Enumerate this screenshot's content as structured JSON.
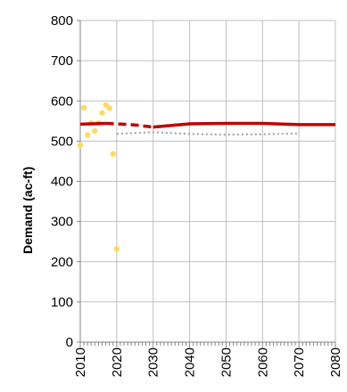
{
  "chart_data": {
    "type": "line",
    "ylabel": "Demand (ac-ft)",
    "xlabel": "",
    "title": "",
    "xlim": [
      2010,
      2080
    ],
    "ylim": [
      0,
      800
    ],
    "x_ticks": [
      2010,
      2020,
      2030,
      2040,
      2050,
      2060,
      2070,
      2080
    ],
    "y_ticks": [
      0,
      100,
      200,
      300,
      400,
      500,
      600,
      700,
      800
    ],
    "grid": true,
    "legend": "none",
    "series": [
      {
        "style": "scatter",
        "color": "#FFD966",
        "points": [
          [
            2010,
            490
          ],
          [
            2011,
            583
          ],
          [
            2012,
            515
          ],
          [
            2013,
            545
          ],
          [
            2014,
            525
          ],
          [
            2015,
            545
          ],
          [
            2016,
            570
          ],
          [
            2017,
            590
          ],
          [
            2018,
            582
          ],
          [
            2019,
            468
          ],
          [
            2020,
            232
          ]
        ]
      },
      {
        "style": "solid",
        "color": "#C00000",
        "points": [
          [
            2010,
            542
          ],
          [
            2017,
            544
          ]
        ]
      },
      {
        "style": "dashed",
        "color": "#C00000",
        "points": [
          [
            2017,
            544
          ],
          [
            2020,
            543
          ],
          [
            2025,
            540
          ],
          [
            2030,
            535
          ]
        ]
      },
      {
        "style": "solid",
        "color": "#C00000",
        "points": [
          [
            2030,
            535
          ],
          [
            2040,
            543
          ],
          [
            2050,
            544
          ],
          [
            2060,
            544
          ],
          [
            2070,
            541
          ],
          [
            2080,
            541
          ]
        ]
      },
      {
        "style": "dotted",
        "color": "#A6A6A6",
        "points": [
          [
            2020,
            518
          ],
          [
            2030,
            522
          ],
          [
            2040,
            518
          ],
          [
            2050,
            516
          ],
          [
            2060,
            517
          ],
          [
            2070,
            519
          ]
        ]
      }
    ]
  }
}
